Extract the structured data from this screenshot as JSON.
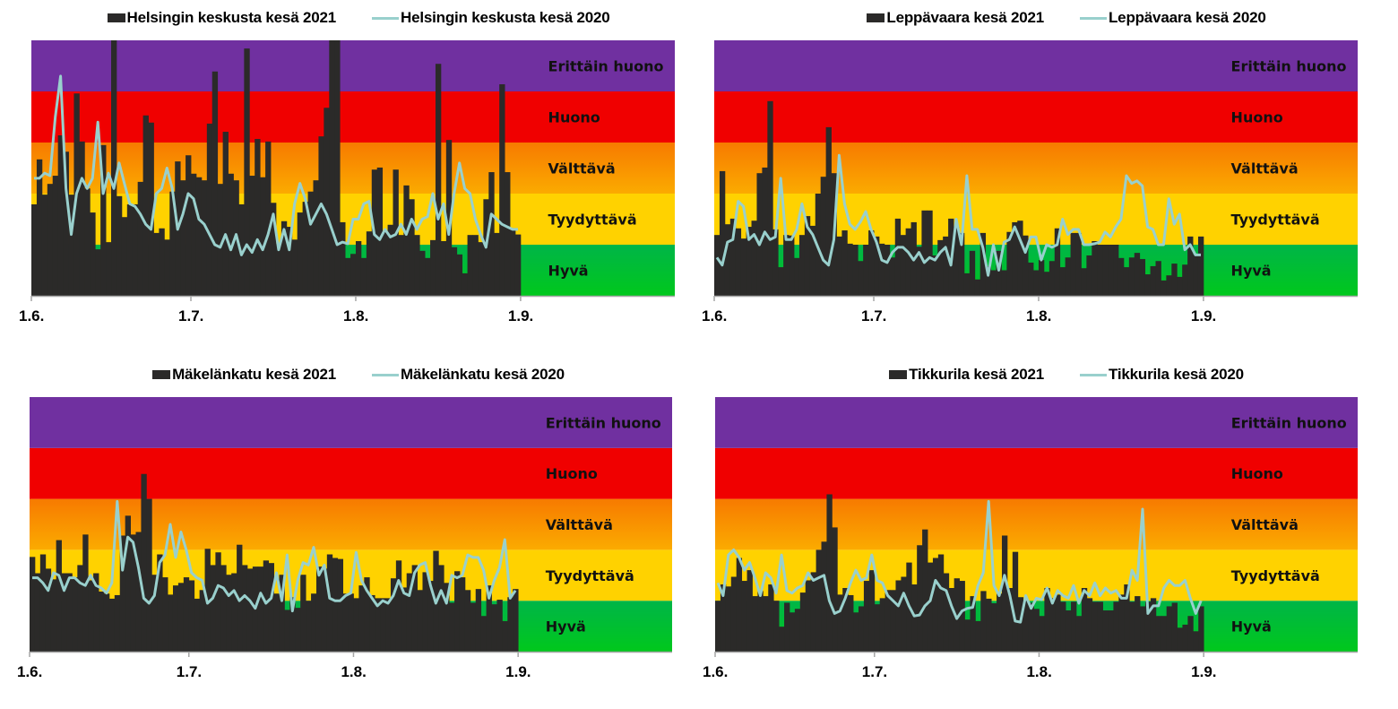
{
  "chart_data": [
    {
      "type": "bar",
      "title": "",
      "legend_position": "top",
      "legend": [
        {
          "name": "Helsingin keskusta kesä 2021",
          "kind": "bar",
          "color": "#2b2a29"
        },
        {
          "name": "Helsingin keskusta kesä 2020",
          "kind": "line",
          "color": "#99d0cd"
        }
      ],
      "xlabel": "",
      "ylabel": "",
      "x_ticks": [
        "1.6.",
        "1.7.",
        "1.8.",
        "1.9."
      ],
      "x_tick_days": [
        0,
        30,
        61,
        92
      ],
      "x_range_days": [
        0,
        121
      ],
      "ylim": [
        0,
        5
      ],
      "bands": [
        {
          "label": "Hyvä",
          "from": 0,
          "to": 1,
          "color": "#00c020"
        },
        {
          "label": "Tyydyttävä",
          "from": 1,
          "to": 2,
          "color": "#ffd200"
        },
        {
          "label": "Välttävä",
          "from": 2,
          "to": 3,
          "color": "#f88a00"
        },
        {
          "label": "Huono",
          "from": 3,
          "to": 4,
          "color": "#f00000"
        },
        {
          "label": "Erittäin huono",
          "from": 4,
          "to": 5,
          "color": "#7030a0"
        }
      ],
      "series": [
        {
          "name": "Helsingin keskusta kesä 2021",
          "kind": "bar",
          "values": [
            1.79,
            2.67,
            1.98,
            2.19,
            2.35,
            3.14,
            2.82,
            1.98,
            3.96,
            3.02,
            2.1,
            1.63,
            0.91,
            2.95,
            1.05,
            5.0,
            1.95,
            1.54,
            1.79,
            1.79,
            2.23,
            3.53,
            3.39,
            1.23,
            1.32,
            1.1,
            2.04,
            2.63,
            2.26,
            2.75,
            2.39,
            2.32,
            2.26,
            3.37,
            4.39,
            2.19,
            3.21,
            2.39,
            2.26,
            1.79,
            4.84,
            2.35,
            3.07,
            2.32,
            3.02,
            1.82,
            1.02,
            1.46,
            1.35,
            1.1,
            1.63,
            1.84,
            2.04,
            2.26,
            3.12,
            3.68,
            5.0,
            5.0,
            1.44,
            0.74,
            0.82,
            1.07,
            0.74,
            1.26,
            2.47,
            2.51,
            1.26,
            1.39,
            2.47,
            1.19,
            2.16,
            1.89,
            1.19,
            0.88,
            0.74,
            1.09,
            4.54,
            1.07,
            3.05,
            0.95,
            0.81,
            0.44,
            1.19,
            1.19,
            1.05,
            1.89,
            2.42,
            1.23,
            4.14,
            2.42,
            1.3,
            1.2
          ]
        },
        {
          "name": "Helsingin keskusta kesä 2020",
          "kind": "line",
          "values": [
            2.3,
            2.3,
            2.4,
            2.35,
            3.5,
            4.3,
            2.1,
            1.2,
            2.0,
            2.3,
            2.1,
            2.3,
            3.4,
            2.0,
            2.4,
            2.1,
            2.6,
            2.2,
            1.8,
            1.75,
            1.6,
            1.4,
            1.3,
            2.0,
            2.1,
            2.5,
            2.1,
            1.3,
            1.6,
            2.0,
            1.9,
            1.5,
            1.4,
            1.2,
            1.0,
            0.95,
            1.2,
            0.9,
            1.2,
            0.8,
            1.0,
            0.85,
            1.1,
            0.9,
            1.2,
            1.6,
            0.9,
            1.3,
            0.9,
            1.8,
            2.2,
            1.9,
            1.4,
            1.6,
            1.8,
            1.6,
            1.3,
            1.0,
            1.05,
            1.02,
            1.5,
            1.5,
            1.8,
            1.85,
            1.2,
            1.1,
            1.3,
            1.15,
            1.2,
            1.4,
            1.2,
            1.5,
            1.3,
            1.5,
            1.55,
            2.0,
            1.5,
            1.8,
            1.2,
            2.0,
            2.6,
            2.1,
            2.0,
            1.5,
            1.2,
            0.95,
            1.6,
            1.5,
            1.4,
            1.35,
            1.3,
            1.3
          ]
        }
      ]
    },
    {
      "type": "bar",
      "title": "",
      "legend_position": "top",
      "legend": [
        {
          "name": "Leppävaara kesä 2021",
          "kind": "bar",
          "color": "#2b2a29"
        },
        {
          "name": "Leppävaara kesä 2020",
          "kind": "line",
          "color": "#99d0cd"
        }
      ],
      "xlabel": "",
      "ylabel": "",
      "x_ticks": [
        "1.6.",
        "1.7.",
        "1.8.",
        "1.9."
      ],
      "x_tick_days": [
        0,
        30,
        61,
        92
      ],
      "x_range_days": [
        0,
        121
      ],
      "ylim": [
        0,
        5
      ],
      "bands": [
        {
          "label": "Hyvä",
          "from": 0,
          "to": 1,
          "color": "#00c020"
        },
        {
          "label": "Tyydyttävä",
          "from": 1,
          "to": 2,
          "color": "#ffd200"
        },
        {
          "label": "Välttävä",
          "from": 2,
          "to": 3,
          "color": "#f88a00"
        },
        {
          "label": "Huono",
          "from": 3,
          "to": 4,
          "color": "#f00000"
        },
        {
          "label": "Erittäin huono",
          "from": 4,
          "to": 5,
          "color": "#7030a0"
        }
      ],
      "series": [
        {
          "name": "Leppävaara kesä 2021",
          "kind": "bar",
          "values": [
            1.19,
            2.44,
            1.4,
            1.51,
            1.32,
            1.12,
            1.35,
            1.47,
            2.4,
            2.51,
            3.81,
            1.3,
            0.56,
            1.19,
            1.18,
            0.74,
            1.19,
            1.56,
            1.37,
            2.0,
            2.33,
            3.3,
            2.4,
            1.16,
            1.28,
            1.02,
            1.0,
            0.68,
            1.0,
            1.28,
            1.16,
            1.02,
            1.0,
            0.75,
            1.51,
            1.19,
            1.32,
            1.44,
            0.96,
            1.67,
            1.67,
            0.79,
            1.09,
            1.16,
            1.51,
            1.35,
            1.23,
            0.44,
            0.88,
            0.32,
            1.23,
            0.58,
            0.5,
            0.88,
            0.5,
            1.25,
            1.44,
            1.47,
            1.18,
            0.65,
            0.5,
            0.7,
            0.47,
            0.68,
            1.32,
            0.56,
            0.75,
            1.23,
            1.23,
            0.54,
            0.79,
            1.07,
            1.0,
            1.0,
            1.0,
            1.0,
            0.74,
            0.56,
            0.75,
            0.84,
            0.72,
            0.42,
            0.58,
            0.68,
            0.3,
            0.4,
            0.63,
            0.37,
            0.61,
            1.16,
            0.81,
            1.16
          ]
        },
        {
          "name": "Leppävaara kesä 2020",
          "kind": "line",
          "values": [
            0.75,
            0.6,
            1.05,
            1.1,
            1.85,
            1.75,
            1.1,
            1.2,
            1.0,
            1.25,
            1.1,
            1.15,
            2.3,
            1.1,
            1.1,
            1.3,
            1.8,
            1.35,
            1.2,
            0.95,
            0.7,
            0.6,
            1.1,
            2.75,
            1.8,
            1.4,
            1.3,
            1.45,
            1.65,
            1.3,
            1.05,
            0.7,
            0.65,
            0.85,
            0.95,
            0.95,
            0.85,
            0.7,
            0.85,
            0.65,
            0.75,
            0.7,
            0.85,
            0.95,
            0.6,
            1.5,
            1.0,
            2.35,
            1.3,
            1.3,
            0.95,
            0.4,
            1.0,
            0.5,
            1.05,
            1.1,
            1.35,
            1.1,
            0.85,
            1.15,
            1.15,
            0.7,
            1.0,
            0.95,
            1.0,
            1.5,
            1.2,
            1.3,
            1.3,
            1.0,
            1.0,
            1.02,
            1.05,
            1.25,
            1.15,
            1.35,
            1.5,
            2.35,
            2.2,
            2.25,
            2.15,
            1.35,
            1.3,
            1.0,
            1.0,
            1.9,
            1.4,
            1.6,
            0.9,
            1.0,
            0.8,
            0.8
          ]
        }
      ]
    },
    {
      "type": "bar",
      "title": "",
      "legend_position": "top",
      "legend": [
        {
          "name": "Mäkelänkatu kesä 2021",
          "kind": "bar",
          "color": "#2b2a29"
        },
        {
          "name": "Mäkelänkatu kesä 2020",
          "kind": "line",
          "color": "#99d0cd"
        }
      ],
      "xlabel": "",
      "ylabel": "",
      "x_ticks": [
        "1.6.",
        "1.7.",
        "1.8.",
        "1.9."
      ],
      "x_tick_days": [
        0,
        30,
        61,
        92
      ],
      "x_range_days": [
        0,
        121
      ],
      "ylim": [
        0,
        5
      ],
      "bands": [
        {
          "label": "Hyvä",
          "from": 0,
          "to": 1,
          "color": "#00c020"
        },
        {
          "label": "Tyydyttävä",
          "from": 1,
          "to": 2,
          "color": "#ffd200"
        },
        {
          "label": "Välttävä",
          "from": 2,
          "to": 3,
          "color": "#f88a00"
        },
        {
          "label": "Huono",
          "from": 3,
          "to": 4,
          "color": "#f00000"
        },
        {
          "label": "Erittäin huono",
          "from": 4,
          "to": 5,
          "color": "#7030a0"
        }
      ],
      "series": [
        {
          "name": "Mäkelänkatu kesä 2021",
          "kind": "bar",
          "values": [
            1.86,
            1.54,
            1.91,
            1.63,
            1.42,
            2.19,
            1.54,
            1.54,
            1.46,
            1.7,
            2.3,
            1.4,
            1.54,
            1.18,
            1.14,
            1.04,
            1.11,
            2.28,
            2.67,
            2.3,
            2.35,
            3.49,
            3.0,
            1.51,
            1.91,
            1.46,
            1.12,
            1.3,
            1.35,
            1.46,
            1.4,
            1.04,
            1.21,
            2.02,
            1.7,
            1.95,
            1.7,
            1.51,
            1.54,
            2.1,
            1.7,
            1.63,
            1.67,
            1.67,
            1.79,
            1.74,
            1.14,
            1.51,
            0.82,
            1.07,
            0.86,
            1.51,
            1.0,
            1.14,
            1.67,
            1.63,
            1.91,
            1.84,
            1.82,
            1.14,
            1.14,
            1.05,
            1.3,
            1.46,
            1.11,
            1.05,
            1.05,
            1.05,
            1.44,
            1.79,
            1.26,
            1.54,
            1.7,
            1.21,
            1.56,
            1.39,
            1.98,
            1.7,
            1.35,
            0.96,
            1.58,
            1.46,
            1.21,
            0.96,
            1.23,
            0.7,
            1.3,
            0.93,
            1.02,
            0.6,
            1.07,
            1.23
          ]
        },
        {
          "name": "Mäkelänkatu kesä 2020",
          "kind": "line",
          "values": [
            1.45,
            1.45,
            1.35,
            1.2,
            1.55,
            1.5,
            1.2,
            1.45,
            1.45,
            1.35,
            1.3,
            1.5,
            1.3,
            1.25,
            1.15,
            1.35,
            2.95,
            1.6,
            2.25,
            2.15,
            1.65,
            1.05,
            0.95,
            1.1,
            1.75,
            1.9,
            2.5,
            1.85,
            2.35,
            2.0,
            1.55,
            1.45,
            1.4,
            0.95,
            1.05,
            1.3,
            1.25,
            1.1,
            1.2,
            1.0,
            1.1,
            1.0,
            0.85,
            1.15,
            0.95,
            1.05,
            1.55,
            1.0,
            1.9,
            0.8,
            1.4,
            1.75,
            1.7,
            2.05,
            1.5,
            1.7,
            1.05,
            1.0,
            1.0,
            1.1,
            1.15,
            1.95,
            1.4,
            1.2,
            1.05,
            0.9,
            1.0,
            0.95,
            1.1,
            1.4,
            1.15,
            1.1,
            1.55,
            1.7,
            1.75,
            1.3,
            0.95,
            1.2,
            0.95,
            1.5,
            1.45,
            1.5,
            1.9,
            1.85,
            1.85,
            1.6,
            1.05,
            1.4,
            1.65,
            2.2,
            1.05,
            1.2
          ]
        }
      ]
    },
    {
      "type": "bar",
      "title": "",
      "legend_position": "top",
      "legend": [
        {
          "name": "Tikkurila kesä 2021",
          "kind": "bar",
          "color": "#2b2a29"
        },
        {
          "name": "Tikkurila kesä 2020",
          "kind": "line",
          "color": "#99d0cd"
        }
      ],
      "xlabel": "",
      "ylabel": "",
      "x_ticks": [
        "1.6.",
        "1.7.",
        "1.8.",
        "1.9."
      ],
      "x_tick_days": [
        0,
        30,
        61,
        92
      ],
      "x_range_days": [
        0,
        121
      ],
      "ylim": [
        0,
        5
      ],
      "bands": [
        {
          "label": "Hyvä",
          "from": 0,
          "to": 1,
          "color": "#00c020"
        },
        {
          "label": "Tyydyttävä",
          "from": 1,
          "to": 2,
          "color": "#ffd200"
        },
        {
          "label": "Välttävä",
          "from": 2,
          "to": 3,
          "color": "#f88a00"
        },
        {
          "label": "Huono",
          "from": 3,
          "to": 4,
          "color": "#f00000"
        },
        {
          "label": "Erittäin huono",
          "from": 4,
          "to": 5,
          "color": "#7030a0"
        }
      ],
      "series": [
        {
          "name": "Tikkurila kesä 2021",
          "kind": "bar",
          "values": [
            1.0,
            1.32,
            1.28,
            1.47,
            1.84,
            1.39,
            1.6,
            1.09,
            1.19,
            1.09,
            1.32,
            1.0,
            0.49,
            0.96,
            0.77,
            0.84,
            1.16,
            1.4,
            1.56,
            2.0,
            2.16,
            3.09,
            2.44,
            1.12,
            1.25,
            1.11,
            0.77,
            0.89,
            1.39,
            1.6,
            0.93,
            1.05,
            1.21,
            1.21,
            1.4,
            1.47,
            1.75,
            1.32,
            2.09,
            2.4,
            1.75,
            1.84,
            1.91,
            1.54,
            1.25,
            1.44,
            1.39,
            0.63,
            1.09,
            0.6,
            1.19,
            1.04,
            0.95,
            1.14,
            2.28,
            1.25,
            1.96,
            1.07,
            1.0,
            0.96,
            0.84,
            0.7,
            1.25,
            1.05,
            1.12,
            0.98,
            0.81,
            0.98,
            0.7,
            1.25,
            1.05,
            0.98,
            0.98,
            0.81,
            0.81,
            0.98,
            1.12,
            1.32,
            0.98,
            1.09,
            0.89,
            0.98,
            1.05,
            0.7,
            0.7,
            0.89,
            0.96,
            0.47,
            0.53,
            0.7,
            0.4,
            0.89
          ]
        },
        {
          "name": "Tikkurila kesä 2020",
          "kind": "line",
          "values": [
            1.35,
            1.1,
            1.9,
            2.0,
            1.85,
            1.6,
            1.75,
            1.45,
            1.1,
            1.55,
            1.45,
            1.15,
            1.9,
            1.2,
            1.15,
            1.25,
            1.3,
            1.55,
            1.4,
            1.45,
            1.5,
            1.0,
            0.75,
            0.8,
            1.05,
            1.35,
            1.6,
            1.4,
            1.45,
            1.9,
            1.4,
            1.35,
            1.1,
            1.0,
            0.9,
            1.15,
            0.9,
            0.7,
            0.72,
            0.9,
            1.0,
            1.4,
            1.25,
            1.2,
            0.9,
            0.65,
            0.8,
            0.85,
            0.87,
            1.3,
            1.55,
            2.95,
            1.3,
            1.1,
            1.5,
            1.1,
            0.6,
            0.58,
            1.1,
            0.85,
            1.05,
            1.02,
            1.25,
            0.95,
            1.2,
            1.1,
            1.05,
            1.3,
            0.95,
            1.2,
            1.1,
            1.35,
            1.1,
            1.25,
            1.15,
            1.2,
            1.05,
            1.05,
            1.6,
            1.4,
            2.8,
            0.75,
            0.9,
            0.9,
            1.25,
            1.4,
            1.3,
            1.3,
            1.4,
            1.05,
            0.75,
            1.0
          ]
        }
      ]
    }
  ]
}
